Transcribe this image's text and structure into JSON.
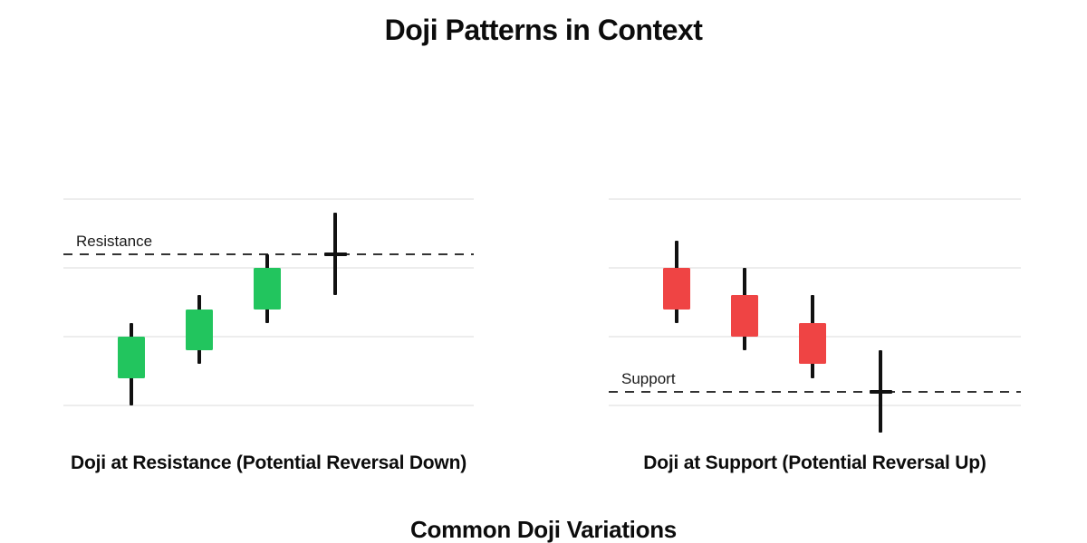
{
  "title": "Doji Patterns in Context",
  "footer_heading": "Common Doji Variations",
  "colors": {
    "bullish": "#22c55e",
    "bearish": "#ef4444",
    "doji": "#111111",
    "wick": "#111111",
    "gridline": "#ededed",
    "level_line": "#333333",
    "text": "#0c0c0c"
  },
  "chart_data": [
    {
      "type": "candlestick",
      "title": "Doji at Resistance (Potential Reversal Down)",
      "trend": "uptrend into resistance, doji at the level",
      "ylim": [
        -0.55,
        3.35
      ],
      "gridline_prices": [
        0,
        1,
        2,
        3
      ],
      "grid": "horizontal-only",
      "level": {
        "label": "Resistance",
        "price": 2.2,
        "style": "dashed"
      },
      "candles": [
        {
          "open": 0.4,
          "high": 1.2,
          "low": 0.0,
          "close": 1.0,
          "direction": "bullish"
        },
        {
          "open": 0.8,
          "high": 1.6,
          "low": 0.6,
          "close": 1.4,
          "direction": "bullish"
        },
        {
          "open": 1.4,
          "high": 2.2,
          "low": 1.2,
          "close": 2.0,
          "direction": "bullish"
        },
        {
          "open": 2.2,
          "high": 2.8,
          "low": 1.6,
          "close": 2.2,
          "direction": "doji"
        }
      ]
    },
    {
      "type": "candlestick",
      "title": "Doji at Support (Potential Reversal Up)",
      "trend": "downtrend into support, doji at the level",
      "ylim": [
        -0.55,
        3.35
      ],
      "gridline_prices": [
        0,
        1,
        2,
        3
      ],
      "grid": "horizontal-only",
      "level": {
        "label": "Support",
        "price": 0.2,
        "style": "dashed"
      },
      "candles": [
        {
          "open": 2.0,
          "high": 2.4,
          "low": 1.2,
          "close": 1.4,
          "direction": "bearish"
        },
        {
          "open": 1.6,
          "high": 2.0,
          "low": 0.8,
          "close": 1.0,
          "direction": "bearish"
        },
        {
          "open": 1.2,
          "high": 1.6,
          "low": 0.4,
          "close": 0.6,
          "direction": "bearish"
        },
        {
          "open": 0.2,
          "high": 0.8,
          "low": -0.4,
          "close": 0.2,
          "direction": "doji"
        }
      ]
    }
  ]
}
